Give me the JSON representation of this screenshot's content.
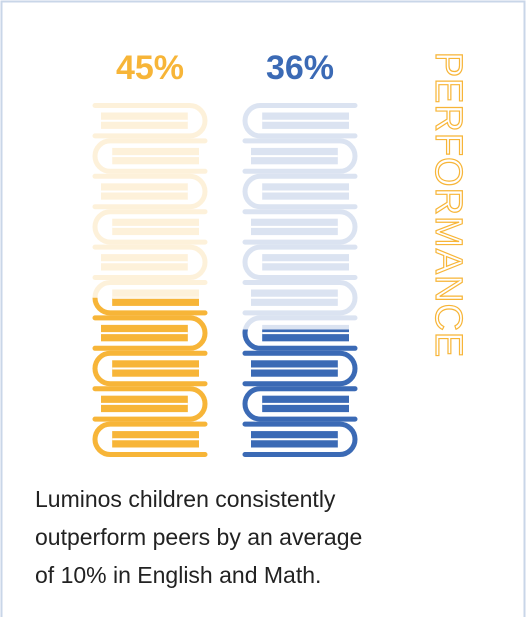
{
  "chart_data": {
    "type": "pictograph",
    "values": [
      45,
      36
    ],
    "value_labels": [
      "45%",
      "36%"
    ],
    "colors": [
      "#f7b538",
      "#3b6ab5"
    ],
    "ylim": [
      0,
      100
    ],
    "title": "PERFORMANCE",
    "caption_lines": [
      "Luminos children consistently",
      "outperform peers by an average",
      "of 10% in English and Math."
    ]
  }
}
